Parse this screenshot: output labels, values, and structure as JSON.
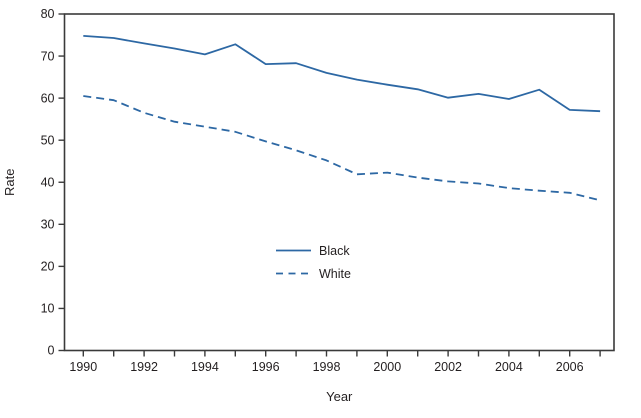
{
  "chart_data": {
    "type": "line",
    "title": "",
    "xlabel": "Year",
    "ylabel": "Rate",
    "x": [
      1990,
      1991,
      1992,
      1993,
      1994,
      1995,
      1996,
      1997,
      1998,
      1999,
      2000,
      2001,
      2002,
      2003,
      2004,
      2005,
      2006,
      2007
    ],
    "series": [
      {
        "name": "Black",
        "style": "solid",
        "values": [
          74.8,
          74.3,
          73.0,
          71.8,
          70.4,
          72.8,
          68.1,
          68.3,
          66.0,
          64.4,
          63.2,
          62.1,
          60.1,
          61.0,
          59.8,
          62.0,
          57.2,
          56.9
        ]
      },
      {
        "name": "White",
        "style": "dashed",
        "values": [
          60.5,
          59.5,
          56.5,
          54.4,
          53.2,
          52.0,
          49.7,
          47.6,
          45.2,
          41.9,
          42.3,
          41.1,
          40.2,
          39.7,
          38.6,
          38.0,
          37.5,
          35.7
        ]
      }
    ],
    "ylim": [
      0,
      80
    ],
    "yticks": [
      0,
      10,
      20,
      30,
      40,
      50,
      60,
      70,
      80
    ],
    "xticks_minor_every_year": true,
    "xtick_labels": [
      1990,
      1992,
      1994,
      1996,
      1998,
      2000,
      2002,
      2004,
      2006
    ],
    "grid": false,
    "legend_position": "inside-center-bottom",
    "frame": "full-box"
  },
  "colors": {
    "line": "#2d68a4",
    "frame": "#3a3a3a",
    "text": "#231f20"
  }
}
